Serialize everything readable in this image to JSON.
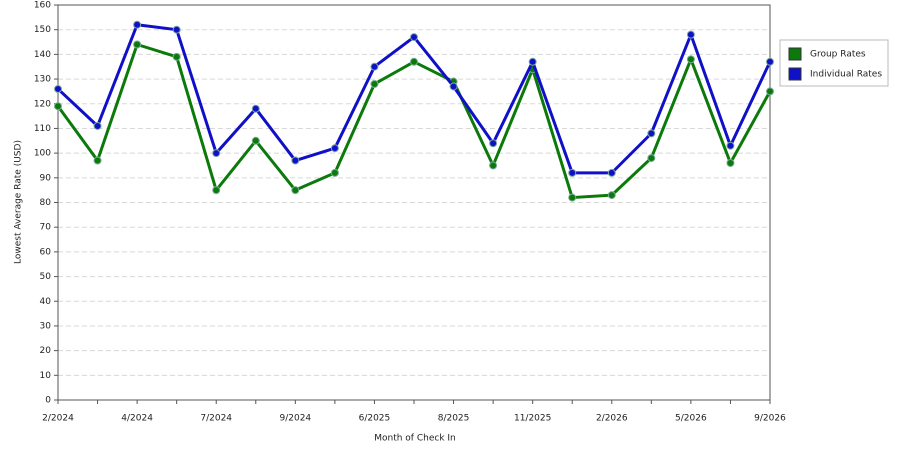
{
  "chart_data": {
    "type": "line",
    "x_label": "Month of Check In",
    "y_label": "Lowest Average Rate (USD)",
    "categories": [
      "2/2024",
      null,
      "4/2024",
      null,
      "7/2024",
      null,
      "9/2024",
      null,
      "6/2025",
      null,
      "8/2025",
      null,
      "11/2025",
      null,
      "2/2026",
      null,
      "5/2026",
      null,
      "9/2026"
    ],
    "series": [
      {
        "name": "Group Rates",
        "color": "#0b7a0b",
        "values": [
          119,
          97,
          144,
          139,
          85,
          105,
          85,
          92,
          128,
          137,
          129,
          95,
          134,
          82,
          83,
          98,
          138,
          96,
          125
        ]
      },
      {
        "name": "Individual Rates",
        "color": "#1010c8",
        "values": [
          126,
          111,
          152,
          150,
          100,
          118,
          97,
          102,
          135,
          147,
          127,
          104,
          137,
          92,
          92,
          108,
          148,
          103,
          137
        ]
      }
    ],
    "ylim": [
      0,
      160
    ],
    "yticks": [
      0,
      10,
      20,
      30,
      40,
      50,
      60,
      70,
      80,
      90,
      100,
      110,
      120,
      130,
      140,
      150,
      160
    ],
    "grid": true,
    "legend": "right"
  }
}
